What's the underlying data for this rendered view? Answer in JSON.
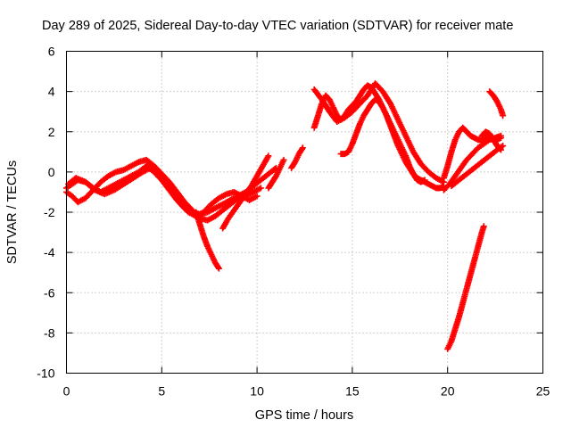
{
  "chart_data": {
    "type": "scatter",
    "title": "Day 289 of 2025, Sidereal Day-to-day VTEC variation (SDTVAR) for receiver mate",
    "xlabel": "GPS time / hours",
    "ylabel": "SDTVAR / TECUs",
    "xlim": [
      0,
      25
    ],
    "ylim": [
      -10,
      6
    ],
    "xticks": [
      0,
      5,
      10,
      15,
      20,
      25
    ],
    "yticks": [
      -10,
      -8,
      -6,
      -4,
      -2,
      0,
      2,
      4,
      6
    ],
    "grid": true,
    "marker": "plus",
    "color": "#ff0000",
    "series": [
      {
        "x": [
          0.0,
          0.3,
          0.6,
          1.0,
          1.4,
          1.8,
          2.2,
          2.6,
          3.0,
          3.4,
          3.8,
          4.2,
          4.6,
          5.0,
          5.4,
          5.8,
          6.2,
          6.6,
          7.0,
          7.4,
          7.8,
          8.2,
          8.6,
          9.0,
          9.4,
          9.8,
          10.2,
          10.6,
          11.0
        ],
        "y": [
          -0.8,
          -0.6,
          -0.4,
          -0.5,
          -0.8,
          -1.0,
          -0.8,
          -0.6,
          -0.4,
          -0.2,
          0.0,
          0.3,
          0.0,
          -0.4,
          -0.9,
          -1.4,
          -1.8,
          -2.0,
          -2.1,
          -2.0,
          -1.8,
          -1.6,
          -1.4,
          -1.2,
          -1.0,
          -0.7,
          -0.4,
          -0.1,
          0.2
        ]
      },
      {
        "x": [
          0.0,
          0.3,
          0.6,
          1.0,
          1.4,
          1.8,
          2.2,
          2.6,
          3.0,
          3.4,
          3.8,
          4.2,
          4.6,
          5.0,
          5.4,
          5.8,
          6.2,
          6.6,
          7.0,
          7.4,
          7.8,
          8.2,
          8.6,
          9.0,
          9.4,
          9.8,
          10.2
        ],
        "y": [
          -1.0,
          -1.2,
          -1.5,
          -1.3,
          -0.9,
          -0.5,
          -0.2,
          0.0,
          0.1,
          0.3,
          0.5,
          0.6,
          0.3,
          -0.1,
          -0.5,
          -1.0,
          -1.5,
          -1.9,
          -2.3,
          -2.4,
          -2.2,
          -1.9,
          -1.6,
          -1.3,
          -1.2,
          -1.0,
          -0.8
        ]
      },
      {
        "x": [
          0.1,
          0.5,
          1.0,
          1.5,
          2.0,
          2.5,
          3.0,
          3.5,
          4.0,
          4.4,
          4.8,
          5.2,
          5.6,
          6.0,
          6.4,
          6.8,
          7.2,
          7.6,
          8.0,
          8.4,
          8.8,
          9.2,
          9.6,
          10.0
        ],
        "y": [
          -0.6,
          -0.3,
          -0.5,
          -0.9,
          -1.1,
          -0.9,
          -0.6,
          -0.3,
          0.0,
          0.2,
          0.0,
          -0.5,
          -1.1,
          -1.6,
          -2.0,
          -2.2,
          -2.0,
          -1.6,
          -1.3,
          -1.1,
          -1.0,
          -1.2,
          -1.4,
          -1.2
        ]
      },
      {
        "x": [
          6.8,
          7.0,
          7.2,
          7.4,
          7.6,
          7.8,
          8.0
        ],
        "y": [
          -2.0,
          -2.6,
          -3.2,
          -3.7,
          -4.1,
          -4.5,
          -4.8
        ]
      },
      {
        "x": [
          8.2,
          8.5,
          8.8,
          9.1,
          9.4,
          9.7,
          10.0,
          10.3,
          10.6
        ],
        "y": [
          -2.8,
          -2.3,
          -1.9,
          -1.5,
          -1.1,
          -0.7,
          -0.2,
          0.3,
          0.8
        ]
      },
      {
        "x": [
          10.6,
          10.8,
          11.0,
          11.2,
          11.4
        ],
        "y": [
          -0.8,
          -0.5,
          -0.2,
          0.2,
          0.6
        ]
      },
      {
        "x": [
          11.8,
          12.0,
          12.2,
          12.4
        ],
        "y": [
          0.2,
          0.5,
          0.9,
          1.2
        ]
      },
      {
        "x": [
          13.0,
          13.2,
          13.4,
          13.6,
          13.8,
          14.0,
          14.2,
          14.4,
          14.6,
          14.8,
          15.0,
          15.2,
          15.4,
          15.6,
          15.8,
          16.0,
          16.2,
          16.4,
          16.6,
          16.8,
          17.0,
          17.2,
          17.4,
          17.6,
          17.8,
          18.0,
          18.2,
          18.4,
          18.6,
          18.8,
          19.0,
          19.2,
          19.4,
          19.6,
          19.8
        ],
        "y": [
          2.2,
          2.8,
          3.4,
          3.8,
          3.6,
          3.2,
          2.8,
          2.6,
          2.8,
          3.1,
          3.3,
          3.5,
          3.8,
          4.1,
          4.3,
          4.2,
          3.9,
          3.6,
          3.2,
          2.8,
          2.3,
          1.8,
          1.3,
          0.9,
          0.5,
          0.2,
          -0.1,
          -0.3,
          -0.4,
          -0.5,
          -0.6,
          -0.7,
          -0.8,
          -0.8,
          -0.7
        ]
      },
      {
        "x": [
          13.0,
          13.4,
          13.8,
          14.2,
          14.6,
          15.0,
          15.4,
          15.8,
          16.2,
          16.6,
          17.0,
          17.4,
          17.8,
          18.2,
          18.6,
          19.0,
          19.4,
          19.8
        ],
        "y": [
          4.1,
          3.6,
          3.0,
          2.5,
          2.7,
          3.0,
          3.4,
          3.8,
          4.4,
          4.0,
          3.4,
          2.6,
          1.8,
          1.0,
          0.4,
          0.0,
          -0.3,
          -0.5
        ]
      },
      {
        "x": [
          14.4,
          14.6,
          14.8,
          15.0,
          15.2,
          15.4,
          15.6,
          15.8,
          16.0,
          16.2,
          16.4,
          16.6,
          16.8,
          17.0,
          17.2,
          17.4,
          17.6,
          17.8,
          18.0,
          18.2,
          18.4,
          18.6,
          18.8
        ],
        "y": [
          0.9,
          0.9,
          1.0,
          1.4,
          1.9,
          2.4,
          2.8,
          3.1,
          3.4,
          3.6,
          3.5,
          3.2,
          2.8,
          2.4,
          2.0,
          1.6,
          1.2,
          0.8,
          0.3,
          -0.1,
          -0.4,
          -0.5,
          -0.4
        ]
      },
      {
        "x": [
          19.8,
          20.1,
          20.4,
          20.7,
          21.0,
          21.3,
          21.6,
          21.9,
          22.2,
          22.5,
          22.8
        ],
        "y": [
          -0.9,
          -0.6,
          -0.2,
          0.2,
          0.6,
          0.9,
          1.2,
          1.4,
          1.6,
          1.7,
          1.8
        ]
      },
      {
        "x": [
          19.8,
          20.0,
          20.2,
          20.4,
          20.6,
          20.8,
          21.0,
          21.2,
          21.4,
          21.6,
          21.8,
          22.0,
          22.2,
          22.4,
          22.6,
          22.8
        ],
        "y": [
          -0.3,
          0.3,
          1.0,
          1.6,
          2.0,
          2.2,
          2.0,
          1.8,
          1.7,
          1.6,
          1.6,
          1.7,
          1.7,
          1.6,
          1.6,
          1.7
        ]
      },
      {
        "x": [
          20.2,
          20.6,
          21.0,
          21.4,
          21.8,
          22.2,
          22.6,
          22.9
        ],
        "y": [
          -0.7,
          -0.4,
          -0.1,
          0.2,
          0.5,
          0.8,
          1.1,
          1.3
        ]
      },
      {
        "x": [
          21.8,
          22.0,
          22.2,
          22.4,
          22.6,
          22.8
        ],
        "y": [
          1.8,
          2.0,
          1.9,
          1.6,
          1.3,
          1.1
        ]
      },
      {
        "x": [
          22.2,
          22.4,
          22.6,
          22.8,
          22.9
        ],
        "y": [
          4.0,
          3.8,
          3.5,
          3.1,
          2.8
        ]
      },
      {
        "x": [
          20.0,
          20.2,
          20.4,
          20.6,
          20.8,
          21.0,
          21.2,
          21.4,
          21.6,
          21.8,
          21.9
        ],
        "y": [
          -8.8,
          -8.4,
          -7.8,
          -7.2,
          -6.5,
          -5.8,
          -5.1,
          -4.4,
          -3.7,
          -3.0,
          -2.7
        ]
      }
    ]
  }
}
